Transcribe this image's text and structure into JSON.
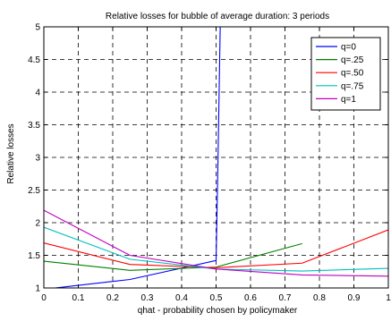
{
  "chart_data": {
    "type": "line",
    "title": "Relative losses for bubble of average duration: 3 periods",
    "xlabel": "qhat - probability chosen by policymaker",
    "ylabel": "Relative losses",
    "xlim": [
      0,
      1
    ],
    "ylim": [
      1,
      5
    ],
    "grid": true,
    "legend_position": "top-right",
    "x_ticks": [
      "0",
      "0.1",
      "0.2",
      "0.3",
      "0.4",
      "0.5",
      "0.6",
      "0.7",
      "0.8",
      "0.9",
      "1"
    ],
    "y_ticks": [
      "1",
      "1.5",
      "2",
      "2.5",
      "3",
      "3.5",
      "4",
      "4.5",
      "5"
    ],
    "series": [
      {
        "name": "q=0",
        "color": "#0000ff",
        "points": [
          [
            0,
            0.98
          ],
          [
            0.25,
            1.13
          ],
          [
            0.5,
            1.42
          ],
          [
            0.505,
            2.8
          ],
          [
            0.512,
            5.0
          ]
        ]
      },
      {
        "name": "q=.25",
        "color": "#008000",
        "points": [
          [
            0,
            1.41
          ],
          [
            0.25,
            1.27
          ],
          [
            0.5,
            1.32
          ],
          [
            0.75,
            1.68
          ]
        ]
      },
      {
        "name": "q=.50",
        "color": "#ff0000",
        "points": [
          [
            0,
            1.69
          ],
          [
            0.25,
            1.36
          ],
          [
            0.5,
            1.31
          ],
          [
            0.75,
            1.38
          ],
          [
            1.0,
            1.89
          ]
        ]
      },
      {
        "name": "q=.75",
        "color": "#00bfbf",
        "points": [
          [
            0,
            1.93
          ],
          [
            0.25,
            1.44
          ],
          [
            0.5,
            1.29
          ],
          [
            0.75,
            1.26
          ],
          [
            1.0,
            1.3
          ]
        ]
      },
      {
        "name": "q=1",
        "color": "#bf00bf",
        "points": [
          [
            0,
            2.19
          ],
          [
            0.25,
            1.5
          ],
          [
            0.5,
            1.29
          ],
          [
            0.75,
            1.2
          ],
          [
            1.0,
            1.18
          ]
        ]
      }
    ]
  }
}
